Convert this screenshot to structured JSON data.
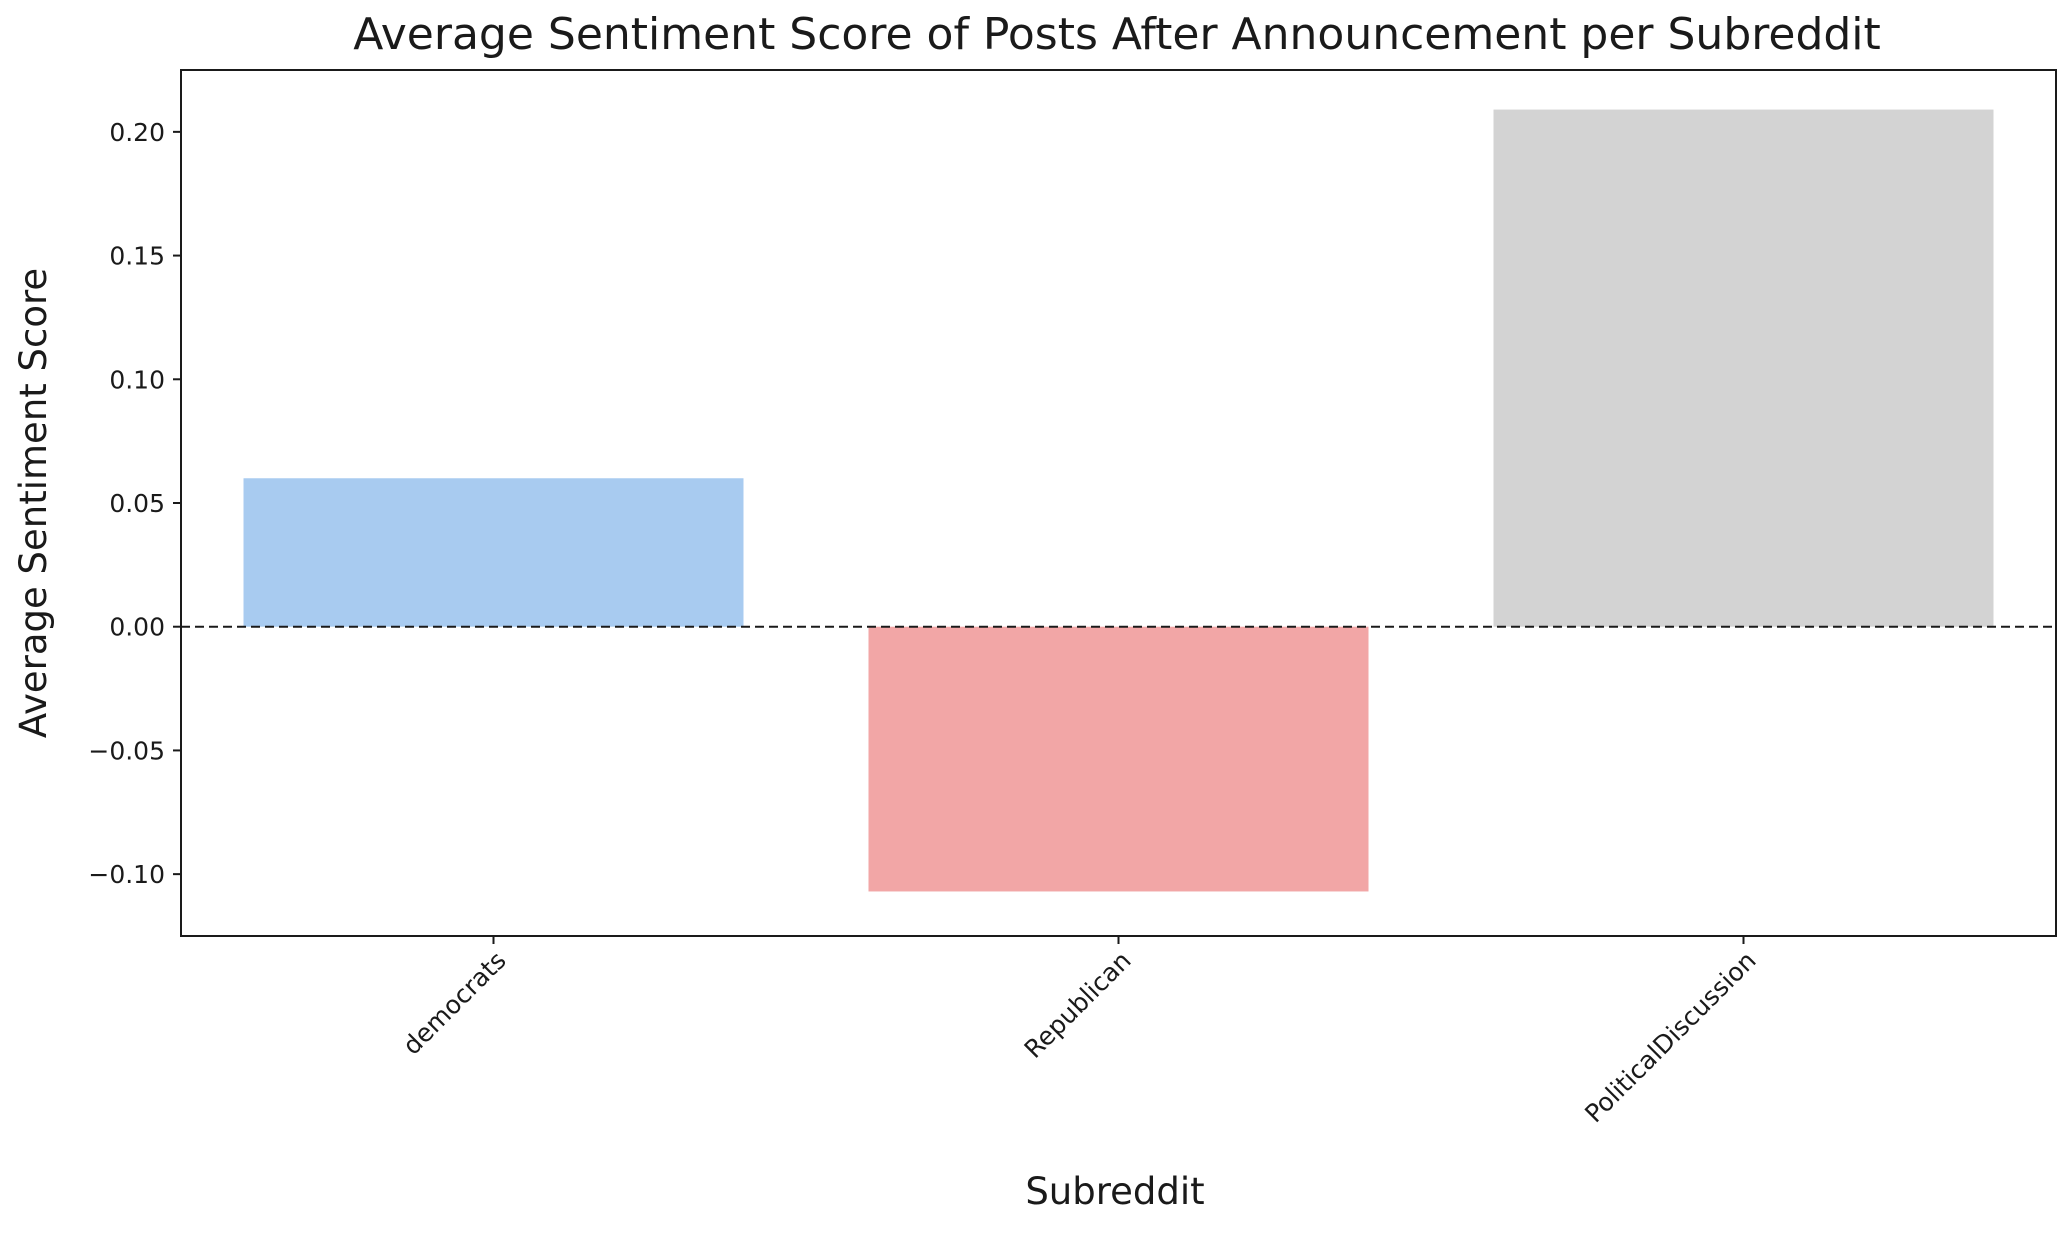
{
  "chart_data": {
    "type": "bar",
    "title": "Average Sentiment Score of Posts After Announcement per Subreddit",
    "xlabel": "Subreddit",
    "ylabel": "Average Sentiment Score",
    "categories": [
      "democrats",
      "Republican",
      "PoliticalDiscussion"
    ],
    "values": [
      0.06,
      -0.107,
      0.209
    ],
    "colors": [
      "#a8cbf0",
      "#f2a6a6",
      "#d3d3d3"
    ],
    "ylim": [
      -0.125,
      0.225
    ],
    "yticks": [
      -0.1,
      -0.05,
      0.0,
      0.05,
      0.1,
      0.15,
      0.2
    ],
    "ytick_labels": [
      "−0.10",
      "−0.05",
      "0.00",
      "0.05",
      "0.10",
      "0.15",
      "0.20"
    ],
    "reference_line": {
      "y": 0,
      "style": "dashed"
    },
    "grid": false,
    "legend": "none"
  }
}
